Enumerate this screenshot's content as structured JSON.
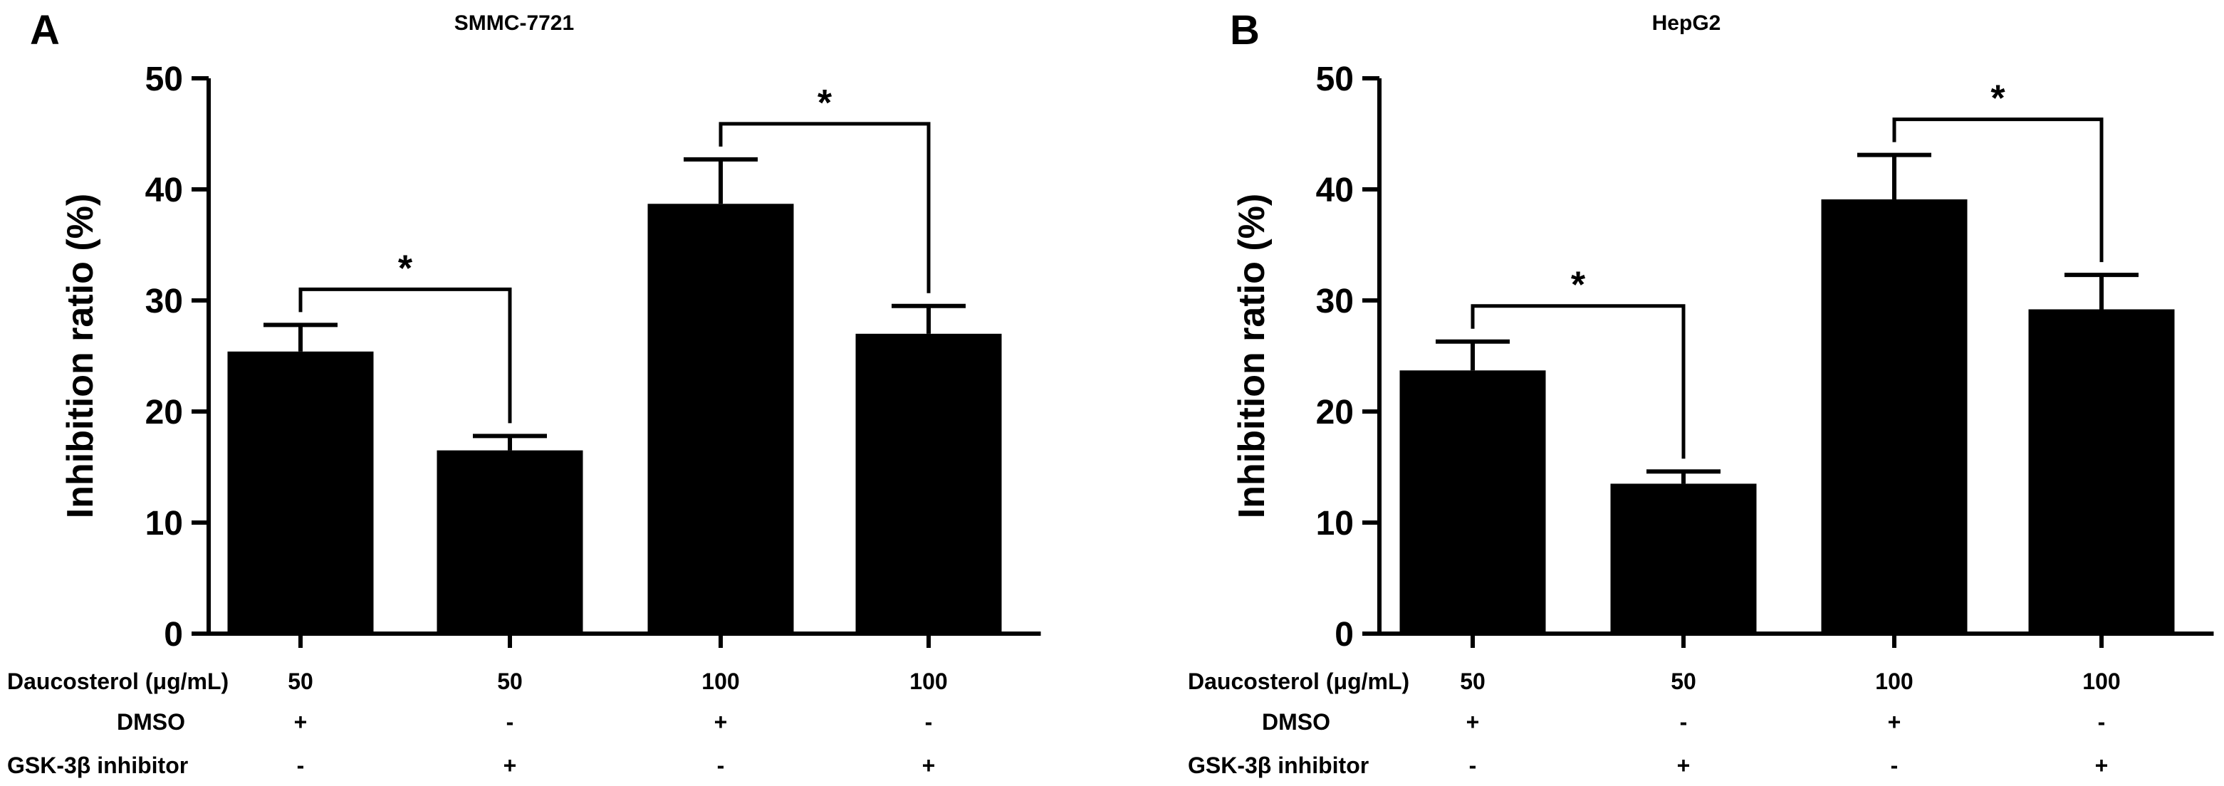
{
  "figure": {
    "panels": [
      "A",
      "B"
    ],
    "condition_labels": {
      "daucosterol": "Daucosterol (μg/mL)",
      "dmso": "DMSO",
      "gsk": "GSK-3β inhibitor"
    },
    "daucosterol_values": [
      "50",
      "50",
      "100",
      "100"
    ],
    "dmso_values": [
      "+",
      "-",
      "+",
      "-"
    ],
    "gsk_values": [
      "-",
      "+",
      "-",
      "+"
    ],
    "significance_symbol": "*"
  },
  "chart_data": [
    {
      "type": "bar",
      "panel": "A",
      "title": "SMMC-7721",
      "ylabel": "Inhibition ratio (%)",
      "xlabel": "",
      "ylim": [
        0,
        50
      ],
      "yticks": [
        0,
        10,
        20,
        30,
        40,
        50
      ],
      "categories": [
        "50 / DMSO",
        "50 / GSK-3β inhibitor",
        "100 / DMSO",
        "100 / GSK-3β inhibitor"
      ],
      "values": [
        25.4,
        16.5,
        38.7,
        27.0
      ],
      "errors": [
        2.4,
        1.3,
        4.0,
        2.5
      ],
      "significance": [
        {
          "from": 0,
          "to": 1,
          "label": "*"
        },
        {
          "from": 2,
          "to": 3,
          "label": "*"
        }
      ]
    },
    {
      "type": "bar",
      "panel": "B",
      "title": "HepG2",
      "ylabel": "Inhibition ratio (%)",
      "xlabel": "",
      "ylim": [
        0,
        50
      ],
      "yticks": [
        0,
        10,
        20,
        30,
        40,
        50
      ],
      "categories": [
        "50 / DMSO",
        "50 / GSK-3β inhibitor",
        "100 / DMSO",
        "100 / GSK-3β inhibitor"
      ],
      "values": [
        23.7,
        13.5,
        39.1,
        29.2
      ],
      "errors": [
        2.6,
        1.1,
        4.0,
        3.1
      ],
      "significance": [
        {
          "from": 0,
          "to": 1,
          "label": "*"
        },
        {
          "from": 2,
          "to": 3,
          "label": "*"
        }
      ]
    }
  ]
}
